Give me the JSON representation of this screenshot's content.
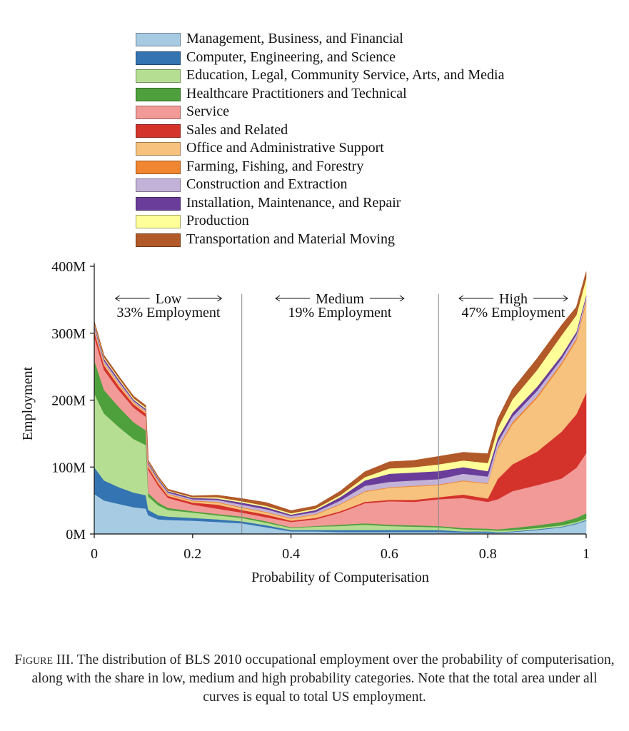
{
  "chart_data": {
    "type": "area",
    "stacked": true,
    "xlabel": "Probability of Computerisation",
    "ylabel": "Employment",
    "xlim": [
      0,
      1
    ],
    "ylim": [
      0,
      400
    ],
    "xticks": [
      0,
      0.2,
      0.4,
      0.6,
      0.8,
      1
    ],
    "xtick_labels": [
      "0",
      "0.2",
      "0.4",
      "0.6",
      "0.8",
      "1"
    ],
    "yticks": [
      0,
      100,
      200,
      300,
      400
    ],
    "ytick_labels": [
      "0M",
      "100M",
      "200M",
      "300M",
      "400M"
    ],
    "legend_position": "top",
    "regions": [
      {
        "label": "Low",
        "share": "33% Employment",
        "from": 0,
        "to": 0.3
      },
      {
        "label": "Medium",
        "share": "19% Employment",
        "from": 0.3,
        "to": 0.7
      },
      {
        "label": "High",
        "share": "47% Employment",
        "from": 0.7,
        "to": 1
      }
    ],
    "dividers": [
      0.3,
      0.7
    ],
    "x": [
      0,
      0.02,
      0.05,
      0.08,
      0.105,
      0.11,
      0.13,
      0.15,
      0.2,
      0.25,
      0.3,
      0.35,
      0.4,
      0.45,
      0.5,
      0.55,
      0.6,
      0.65,
      0.7,
      0.75,
      0.8,
      0.82,
      0.85,
      0.9,
      0.95,
      0.98,
      1.0
    ],
    "series": [
      {
        "name": "Management, Business, and Financial",
        "color": "#a6cbe3",
        "values": [
          60,
          50,
          45,
          40,
          38,
          28,
          22,
          21,
          20,
          18,
          16,
          10,
          4,
          4,
          3,
          3,
          3,
          3,
          3,
          2,
          2,
          2,
          3,
          6,
          10,
          15,
          20
        ]
      },
      {
        "name": "Computer, Engineering, and Science",
        "color": "#3574b2",
        "values": [
          40,
          30,
          25,
          22,
          20,
          8,
          6,
          5,
          4,
          4,
          3,
          3,
          2,
          2,
          3,
          3,
          3,
          3,
          3,
          2,
          2,
          1,
          1,
          1,
          1,
          1,
          1
        ]
      },
      {
        "name": "Education, Legal, Community Service, Arts, and Media",
        "color": "#b5de92",
        "values": [
          110,
          100,
          90,
          80,
          75,
          20,
          15,
          10,
          8,
          6,
          5,
          4,
          3,
          5,
          6,
          8,
          6,
          5,
          4,
          3,
          2,
          2,
          2,
          2,
          2,
          2,
          2
        ]
      },
      {
        "name": "Healthcare Practitioners and Technical",
        "color": "#4ea03c",
        "values": [
          50,
          35,
          30,
          25,
          22,
          5,
          4,
          3,
          2,
          2,
          2,
          2,
          1,
          1,
          2,
          2,
          2,
          2,
          2,
          2,
          2,
          2,
          3,
          4,
          5,
          6,
          8
        ]
      },
      {
        "name": "Service",
        "color": "#f19a98",
        "values": [
          35,
          30,
          25,
          22,
          20,
          35,
          25,
          15,
          10,
          8,
          6,
          6,
          8,
          10,
          18,
          30,
          35,
          35,
          40,
          45,
          40,
          45,
          55,
          60,
          65,
          75,
          90
        ]
      },
      {
        "name": "Sales and Related",
        "color": "#d4332c",
        "values": [
          8,
          7,
          6,
          5,
          5,
          4,
          4,
          3,
          3,
          6,
          4,
          4,
          2,
          2,
          2,
          2,
          2,
          3,
          3,
          5,
          5,
          30,
          40,
          50,
          70,
          80,
          90
        ]
      },
      {
        "name": "Office and Administrative Support",
        "color": "#f6c27d",
        "values": [
          3,
          3,
          3,
          2,
          2,
          2,
          2,
          2,
          2,
          3,
          3,
          3,
          3,
          5,
          10,
          15,
          18,
          20,
          18,
          20,
          22,
          45,
          60,
          80,
          100,
          110,
          135
        ]
      },
      {
        "name": "Farming, Fishing, and Forestry",
        "color": "#f08630",
        "values": [
          1,
          1,
          1,
          1,
          1,
          1,
          1,
          1,
          1,
          1,
          1,
          1,
          1,
          1,
          1,
          1,
          1,
          1,
          1,
          1,
          1,
          2,
          3,
          3,
          3,
          3,
          3
        ]
      },
      {
        "name": "Construction and Extraction",
        "color": "#c3b2d7",
        "values": [
          3,
          3,
          3,
          2,
          2,
          2,
          2,
          2,
          2,
          3,
          4,
          4,
          3,
          3,
          5,
          8,
          8,
          8,
          8,
          10,
          10,
          8,
          8,
          8,
          6,
          6,
          5
        ]
      },
      {
        "name": "Installation, Maintenance, and Repair",
        "color": "#6a3d9a",
        "values": [
          3,
          3,
          3,
          2,
          2,
          2,
          2,
          2,
          2,
          2,
          3,
          3,
          2,
          3,
          5,
          8,
          12,
          12,
          12,
          10,
          8,
          6,
          6,
          6,
          5,
          4,
          3
        ]
      },
      {
        "name": "Production",
        "color": "#ffff9a",
        "values": [
          2,
          2,
          2,
          2,
          2,
          1,
          1,
          1,
          1,
          2,
          2,
          2,
          2,
          2,
          3,
          5,
          8,
          8,
          10,
          10,
          12,
          15,
          20,
          25,
          30,
          25,
          25
        ]
      },
      {
        "name": "Transportation and Material Moving",
        "color": "#b15928",
        "values": [
          3,
          3,
          3,
          3,
          3,
          2,
          2,
          2,
          2,
          3,
          4,
          5,
          4,
          4,
          6,
          8,
          10,
          10,
          12,
          12,
          14,
          14,
          15,
          17,
          15,
          12,
          10
        ]
      }
    ]
  },
  "caption": {
    "figure_label": "Figure III.",
    "text_1": " The distribution of ",
    "bls": "BLS",
    "text_2": " 2010 occupational employment over the probability of computerisation, along with the share in low, medium and high probability categories. Note that the total area under all curves is equal to total ",
    "us": "US",
    "text_3": " employment."
  }
}
